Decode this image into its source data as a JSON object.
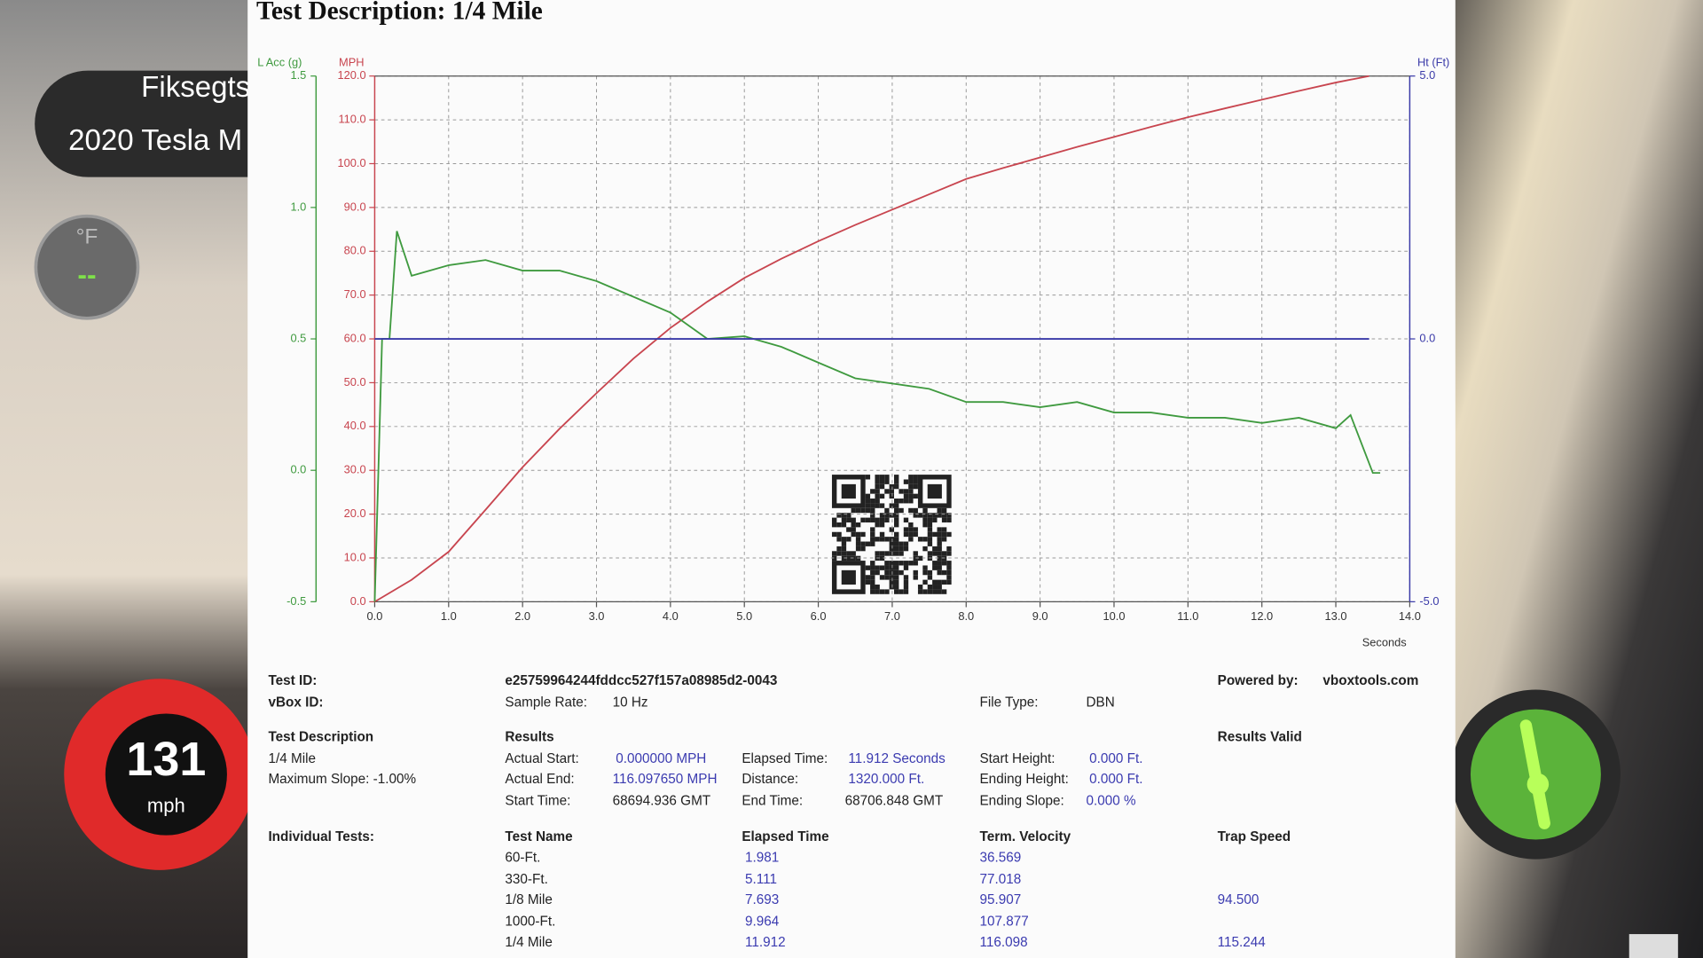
{
  "chart_data": {
    "type": "line",
    "title": "Test Description: 1/4 Mile",
    "x_label": "Seconds",
    "y_label": "MPH",
    "y2_label": "Ht (Ft)",
    "y3_label": "L Acc (g)",
    "xlim": [
      0,
      14
    ],
    "xticks": [
      {
        "value": 0,
        "label": "0.0"
      },
      {
        "value": 1,
        "label": "1.0"
      },
      {
        "value": 2,
        "label": "2.0"
      },
      {
        "value": 3,
        "label": "3.0"
      },
      {
        "value": 4,
        "label": "4.0"
      },
      {
        "value": 5,
        "label": "5.0"
      },
      {
        "value": 6,
        "label": "6.0"
      },
      {
        "value": 7,
        "label": "7.0"
      },
      {
        "value": 8,
        "label": "8.0"
      },
      {
        "value": 9,
        "label": "9.0"
      },
      {
        "value": 10,
        "label": "10.0"
      },
      {
        "value": 11,
        "label": "11.0"
      },
      {
        "value": 12,
        "label": "12.0"
      },
      {
        "value": 13,
        "label": "13.0"
      },
      {
        "value": 14,
        "label": "14.0"
      }
    ],
    "ylim": [
      0,
      120
    ],
    "yticks": [
      {
        "value": 0,
        "label": "0.0"
      },
      {
        "value": 10,
        "label": "10.0"
      },
      {
        "value": 20,
        "label": "20.0"
      },
      {
        "value": 30,
        "label": "30.0"
      },
      {
        "value": 40,
        "label": "40.0"
      },
      {
        "value": 50,
        "label": "50.0"
      },
      {
        "value": 60,
        "label": "60.0"
      },
      {
        "value": 70,
        "label": "70.0"
      },
      {
        "value": 80,
        "label": "80.0"
      },
      {
        "value": 90,
        "label": "90.0"
      },
      {
        "value": 100,
        "label": "100.0"
      },
      {
        "value": 110,
        "label": "110.0"
      },
      {
        "value": 120,
        "label": "120.0"
      }
    ],
    "y2lim": [
      -5,
      5
    ],
    "y2ticks": [
      {
        "value": -5,
        "label": "-5.0"
      },
      {
        "value": 0,
        "label": "0.0"
      },
      {
        "value": 5,
        "label": "5.0"
      }
    ],
    "y3lim": [
      -0.5,
      1.5
    ],
    "y3ticks": [
      -0.5,
      {
        "value": 0,
        "label": "0.0"
      },
      0.5,
      {
        "value": 1,
        "label": "1.0"
      },
      1.5
    ],
    "grid": true,
    "series": [
      {
        "color": "#c8454f",
        "axis": "y",
        "x": [
          0,
          0.5,
          1,
          1.5,
          2,
          2.5,
          3,
          3.5,
          4,
          4.5,
          5,
          5.5,
          6,
          6.5,
          7,
          7.5,
          8,
          8.5,
          9,
          9.5,
          10,
          10.5,
          11,
          11.5,
          12,
          12.5,
          13,
          13.45
        ],
        "values": [
          0,
          5,
          11.4,
          21,
          30.7,
          39.5,
          47.6,
          55.5,
          62.5,
          68.5,
          73.9,
          78.3,
          82.3,
          86,
          89.5,
          93,
          96.5,
          99,
          101.4,
          103.8,
          106.1,
          108.4,
          110.6,
          112.6,
          114.6,
          116.6,
          118.5,
          120
        ]
      },
      {
        "color": "#3f9a3f",
        "axis": "y3",
        "x": [
          0,
          0.1,
          0.2,
          0.3,
          0.5,
          1,
          1.5,
          2,
          2.5,
          3,
          3.5,
          4,
          4.5,
          5,
          5.5,
          6,
          6.5,
          7,
          7.5,
          8,
          8.5,
          9,
          9.5,
          10,
          10.5,
          11,
          11.5,
          12,
          12.5,
          13,
          13.2,
          13.5,
          13.6
        ],
        "values": [
          -0.5,
          0.5,
          0.5,
          0.91,
          0.74,
          0.78,
          0.8,
          0.76,
          0.76,
          0.72,
          0.66,
          0.6,
          0.5,
          0.51,
          0.47,
          0.41,
          0.35,
          0.33,
          0.31,
          0.26,
          0.26,
          0.24,
          0.26,
          0.22,
          0.22,
          0.2,
          0.2,
          0.18,
          0.2,
          0.16,
          0.21,
          -0.01,
          -0.01
        ]
      },
      {
        "color": "#3a3aa8",
        "axis": "y2",
        "x": [
          0,
          13.45
        ],
        "values": [
          0,
          0
        ]
      }
    ]
  },
  "report": {
    "test_id": {
      "label": "Test ID:",
      "value": "e25759964244fddcc527f157a08985d2-0043"
    },
    "powered_by": {
      "label": "Powered by:",
      "value": "vboxtools.com"
    },
    "vbox_id": {
      "label": "vBox ID:"
    },
    "sample_rate": {
      "label": "Sample Rate:",
      "value": "10 Hz"
    },
    "file_type": {
      "label": "File Type:",
      "value": "DBN"
    },
    "test_description": {
      "heading": "Test Description",
      "name": "1/4 Mile",
      "max_slope": "Maximum Slope: -1.00%"
    },
    "results": {
      "heading": "Results",
      "status": "Results Valid",
      "items": [
        {
          "label": "Actual Start:",
          "value": "0.000000 MPH"
        },
        {
          "label": "Actual End:",
          "value": "116.097650 MPH"
        },
        {
          "label": "Start Time:",
          "value": "68694.936 GMT"
        },
        {
          "label": "Elapsed Time:",
          "value": "11.912 Seconds"
        },
        {
          "label": "Distance:",
          "value": "1320.000 Ft."
        },
        {
          "label": "End Time:",
          "value": "68706.848 GMT"
        },
        {
          "label": "Start Height:",
          "value": "0.000 Ft."
        },
        {
          "label": "Ending Height:",
          "value": "0.000 Ft."
        },
        {
          "label": "Ending Slope:",
          "value": "0.000 %"
        }
      ]
    },
    "individual_tests": {
      "heading": "Individual Tests:",
      "columns": [
        "Test Name",
        "Elapsed Time",
        "Term. Velocity",
        "Trap Speed"
      ],
      "rows": [
        [
          "60-Ft.",
          "1.981",
          "36.569"
        ],
        [
          "330-Ft.",
          "5.111",
          "77.018"
        ],
        [
          "1/8 Mile",
          "7.693",
          "95.907",
          "94.500"
        ],
        [
          "1000-Ft.",
          "9.964",
          "107.877"
        ],
        [
          "1/4 Mile",
          "11.912",
          "116.098",
          "115.244"
        ]
      ]
    }
  },
  "overlay": {
    "driver": "Fiksegts",
    "car": "2020 Tesla M",
    "temp_unit": "°F",
    "temp_value": "--",
    "speed": "131",
    "speed_unit": "mph"
  }
}
